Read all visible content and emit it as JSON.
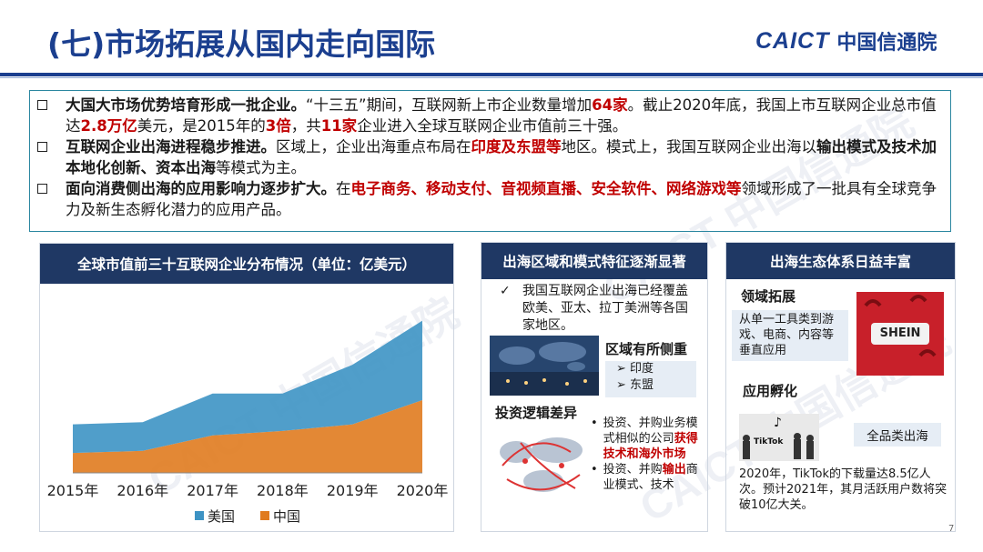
{
  "header": {
    "title": "(七)市场拓展从国内走向国际",
    "logo_en": "CAICT",
    "logo_cn": "中国信通院"
  },
  "bullets": [
    {
      "parts": [
        {
          "t": "大国大市场优势培育形成一批企业。",
          "s": "bold"
        },
        {
          "t": "“十三五”期间，互联网新上市企业数量增加",
          "s": ""
        },
        {
          "t": "64家",
          "s": "red"
        },
        {
          "t": "。截止2020年底，我国上市互联网企业总市值达",
          "s": ""
        },
        {
          "t": "2.8万亿",
          "s": "red"
        },
        {
          "t": "美元，是2015年的",
          "s": ""
        },
        {
          "t": "3倍",
          "s": "red"
        },
        {
          "t": "，共",
          "s": ""
        },
        {
          "t": "11家",
          "s": "red"
        },
        {
          "t": "企业进入全球互联网企业市值前三十强。",
          "s": ""
        }
      ]
    },
    {
      "parts": [
        {
          "t": "互联网企业出海进程稳步推进。",
          "s": "bold"
        },
        {
          "t": "区域上，企业出海重点布局在",
          "s": ""
        },
        {
          "t": "印度及东盟等",
          "s": "red"
        },
        {
          "t": "地区。模式上，我国互联网企业出海以",
          "s": ""
        },
        {
          "t": "输出模式及技术加本地化创新、资本出海",
          "s": "bold"
        },
        {
          "t": "等模式为主。",
          "s": ""
        }
      ]
    },
    {
      "parts": [
        {
          "t": "面向消费侧出海的应用影响力逐步扩大。",
          "s": "bold"
        },
        {
          "t": "在",
          "s": ""
        },
        {
          "t": "电子商务、移动支付、音视频直播、安全软件、网络游戏等",
          "s": "red"
        },
        {
          "t": "领域形成了一批具有全球竞争力及新生态孵化潜力的应用产品。",
          "s": ""
        }
      ]
    }
  ],
  "chart_panel": {
    "heading": "全球市值前三十互联网企业分布情况（单位：亿美元）"
  },
  "chart_data": {
    "type": "area",
    "title": "全球市值前三十互联网企业分布情况（单位：亿美元）",
    "categories": [
      "2015年",
      "2016年",
      "2017年",
      "2018年",
      "2019年",
      "2020年"
    ],
    "stacked": true,
    "series": [
      {
        "name": "中国",
        "color": "#e07b1f",
        "values": [
          9,
          10,
          17,
          19,
          22,
          33
        ]
      },
      {
        "name": "美国",
        "color": "#3d93c4",
        "values": [
          13,
          13,
          19,
          17,
          27,
          36
        ]
      }
    ],
    "ylim": [
      0,
      80
    ],
    "grid": false,
    "legend": "bottom",
    "xlabel": "",
    "ylabel": ""
  },
  "middle_panel": {
    "heading": "出海区域和模式特征逐渐显著",
    "intro": "我国互联网企业出海已经覆盖欧美、亚太、拉丁美洲等各国家地区。",
    "region_title": "区域有所侧重",
    "regions": [
      "印度",
      "东盟"
    ],
    "invest_title": "投资逻辑差异",
    "invest_items": [
      {
        "parts": [
          {
            "t": "投资、并购业务模式相似的公司",
            "s": ""
          },
          {
            "t": "获得技术和海外市场",
            "s": "red"
          }
        ]
      },
      {
        "parts": [
          {
            "t": "投资、并购",
            "s": ""
          },
          {
            "t": "输出",
            "s": "red"
          },
          {
            "t": "商业模式、技术",
            "s": ""
          }
        ]
      }
    ]
  },
  "right_panel": {
    "heading": "出海生态体系日益丰富",
    "field_title": "领域拓展",
    "field_text": "从单一工具类到游戏、电商、内容等垂直应用",
    "shein_logo": "SHEIN",
    "incubate_title": "应用孵化",
    "tiktok_logo": "TikTok",
    "category_label": "全品类出海",
    "note": "2020年，TikTok的下载量达8.5亿人次。预计2021年，其月活跃用户数将突破10亿大关。"
  },
  "footer": {
    "page_number": "7"
  },
  "colors": {
    "brand": "#1b3f8f",
    "header_bg": "#1f3864",
    "highlight": "#c00000",
    "us": "#3d93c4",
    "cn": "#e07b1f"
  }
}
